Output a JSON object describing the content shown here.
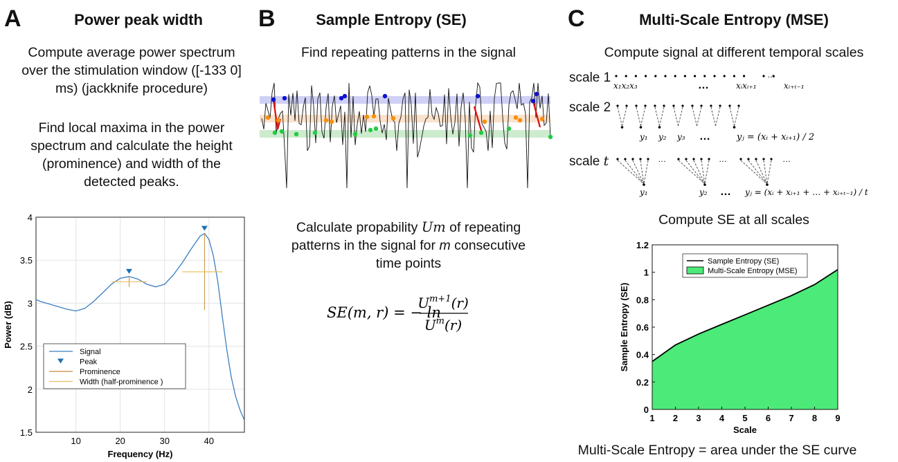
{
  "panel_a": {
    "letter": "A",
    "title": "Power peak width",
    "text1": [
      "Compute average power spectrum",
      "over the stimulation window ([-133 0]",
      "ms) (jackknife procedure)"
    ],
    "text2": [
      "Find local maxima in the power",
      "spectrum and calculate the height",
      "(prominence) and width of the",
      "detected peaks."
    ]
  },
  "panel_b": {
    "letter": "B",
    "title": "Sample Entropy (SE)",
    "text1": "Find repeating patterns in the signal",
    "text2_line1_pre": "Calculate propability ",
    "text2_line1_sym": "Um",
    "text2_line1_post": " of repeating",
    "text2_line2_pre": "patterns in the signal for ",
    "text2_line2_sym": "m",
    "text2_line2_post": " consecutive",
    "text2_line3": "time points",
    "formula_lhs": "SE(m, r) = − ln",
    "formula_num": "U",
    "formula_num_sup": "m+1",
    "formula_num_arg": "(r)",
    "formula_den": "U",
    "formula_den_sup": "m",
    "formula_den_arg": "(r)"
  },
  "panel_c": {
    "letter": "C",
    "title": "Multi-Scale Entropy (MSE)",
    "text1": "Compute signal at different temporal scales",
    "scale1_label": "scale 1",
    "scale2_label": "scale 2",
    "scalet_label_pre": "scale ",
    "scalet_label_sym": "t",
    "text2": "Compute SE at all scales",
    "text3": "Multi-Scale Entropy = area under the SE curve",
    "scale1_subs": [
      "x₁x₂x₃",
      "…",
      "xᵢxᵢ₊₁",
      "xᵢ₊ₜ₋₁"
    ],
    "scale2_subs": [
      "y₁",
      "y₂",
      "y₃",
      "…"
    ],
    "scale2_eq": "yⱼ = (xᵢ + xᵢ₊₁) / 2",
    "scalet_subs": [
      "y₁",
      "y₂",
      "…"
    ],
    "scalet_eq": "yⱼ = (xᵢ + xᵢ₊₁ + … + xᵢ₊ₜ₋₁) / t"
  },
  "chart_data": [
    {
      "type": "line",
      "xlabel": "Frequency (Hz)",
      "ylabel": "Power (dB)",
      "xlim": [
        1,
        48
      ],
      "ylim": [
        1.5,
        4
      ],
      "xticks": [
        "10",
        "20",
        "30",
        "40"
      ],
      "yticks": [
        "1.5",
        "2",
        "2.5",
        "3",
        "3.5",
        "4"
      ],
      "series": [
        {
          "name": "Signal",
          "color": "#3a7dc2",
          "x": [
            1,
            2,
            4,
            6,
            8,
            10,
            12,
            14,
            16,
            18,
            20,
            22,
            24,
            26,
            28,
            30,
            32,
            34,
            36,
            38,
            39,
            40,
            41,
            42,
            43,
            44,
            45,
            46,
            47,
            48
          ],
          "y": [
            3.04,
            3.02,
            2.99,
            2.96,
            2.93,
            2.91,
            2.94,
            3.02,
            3.12,
            3.22,
            3.29,
            3.31,
            3.28,
            3.22,
            3.19,
            3.22,
            3.33,
            3.47,
            3.63,
            3.78,
            3.81,
            3.74,
            3.55,
            3.25,
            2.85,
            2.47,
            2.15,
            1.92,
            1.76,
            1.64
          ]
        }
      ],
      "peaks": [
        {
          "x": 22,
          "y": 3.31,
          "prominence_low": 3.19,
          "width_left": 18,
          "width_right": 26
        },
        {
          "x": 39,
          "y": 3.81,
          "prominence_low": 2.92,
          "width_left": 34,
          "width_right": 43
        }
      ],
      "legend": {
        "placement": "lower-center",
        "entries": [
          "Signal",
          "Peak",
          "Prominence",
          "Width (half-prominence )"
        ]
      },
      "colors": {
        "signal": "#3a7dc2",
        "peak": "#1f6fb4",
        "prominence": "#c8893a",
        "width": "#e8c060"
      },
      "grid": true
    },
    {
      "type": "area",
      "xlabel": "Scale",
      "ylabel": "Sample Entropy (SE)",
      "xlim": [
        1,
        9
      ],
      "ylim": [
        0,
        1.2
      ],
      "xticks": [
        "1",
        "2",
        "3",
        "4",
        "5",
        "6",
        "7",
        "8",
        "9"
      ],
      "yticks": [
        "0",
        "0.2",
        "0.4",
        "0.6",
        "0.8",
        "1",
        "1.2"
      ],
      "series": [
        {
          "name": "Sample Entropy (SE)",
          "x": [
            1,
            2,
            3,
            4,
            5,
            6,
            7,
            8,
            9
          ],
          "y": [
            0.35,
            0.47,
            0.55,
            0.62,
            0.69,
            0.76,
            0.83,
            0.91,
            1.02
          ]
        }
      ],
      "legend": {
        "placement": "top-center",
        "entries": [
          "Sample Entropy (SE)",
          "Multi-Scale Entropy (MSE)"
        ]
      },
      "colors": {
        "fill": "#4cea78",
        "line": "#000000"
      },
      "grid": false
    }
  ]
}
